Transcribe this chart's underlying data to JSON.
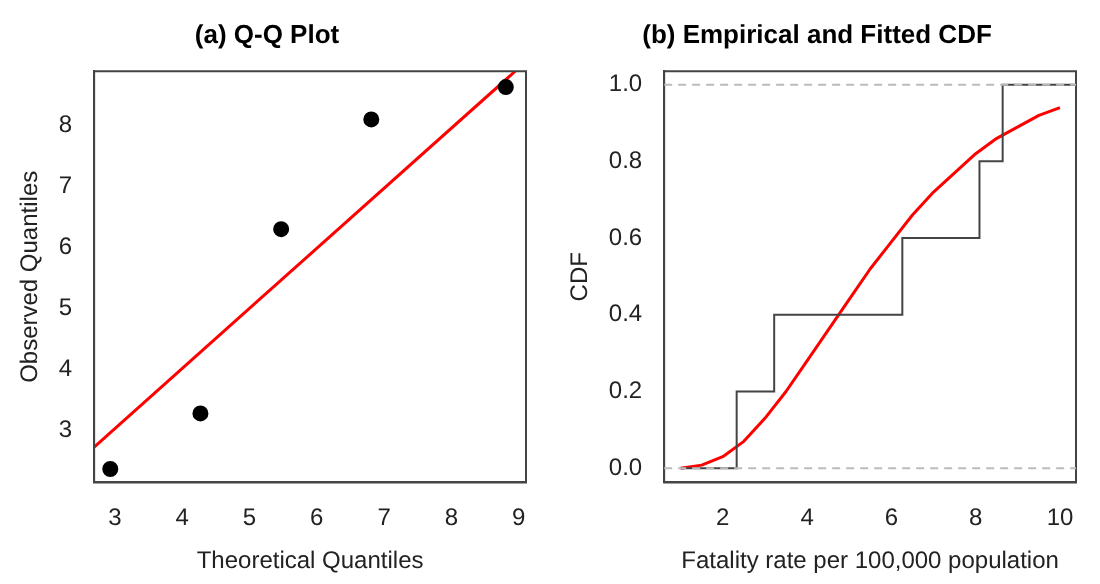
{
  "chart_data": [
    {
      "type": "scatter",
      "title": "(a) Q-Q Plot",
      "xlabel": "Theoretical Quantiles",
      "ylabel": "Observed Quantiles",
      "xlim": [
        2.69,
        9.11
      ],
      "ylim": [
        2.14,
        8.88
      ],
      "xticks": [
        3,
        4,
        5,
        6,
        7,
        8,
        9
      ],
      "yticks": [
        3,
        4,
        5,
        6,
        7,
        8
      ],
      "grid": false,
      "legend": false,
      "series": [
        {
          "marker": "circle",
          "color": "#000000",
          "x": [
            2.93,
            4.27,
            5.47,
            6.81,
            8.81
          ],
          "values": [
            2.36,
            3.27,
            6.29,
            8.09,
            8.62
          ]
        },
        {
          "type": "line",
          "color": "#ff0000",
          "x": [
            2.69,
            8.95
          ],
          "values": [
            2.72,
            8.88
          ]
        }
      ]
    },
    {
      "type": "line",
      "title": "(b) Empirical and Fitted CDF",
      "xlabel": "Fatality rate per 100,000 population",
      "ylabel": "CDF",
      "xlim": [
        0.61,
        10.38
      ],
      "ylim": [
        -0.037,
        1.035
      ],
      "xticks": [
        2,
        4,
        6,
        8,
        10
      ],
      "yticks": [
        {
          "value": 0,
          "label": "0.0"
        },
        {
          "value": 0.2,
          "label": "0.2"
        },
        {
          "value": 0.4,
          "label": "0.4"
        },
        {
          "value": 0.6,
          "label": "0.6"
        },
        {
          "value": 0.8,
          "label": "0.8"
        },
        {
          "value": 1,
          "label": "1.0"
        }
      ],
      "grid": false,
      "legend": false,
      "ref_lines": [
        {
          "axis": "y",
          "value": 0,
          "color": "#bbbbbb",
          "line_style": "dashed"
        },
        {
          "axis": "y",
          "value": 1,
          "color": "#bbbbbb",
          "line_style": "dashed"
        }
      ],
      "series": [
        {
          "type": "step",
          "color": "#444444",
          "x": [
            1.0,
            2.33,
            3.22,
            6.26,
            8.09,
            8.64,
            10.38
          ],
          "values": [
            0,
            0.2,
            0.4,
            0.6,
            0.8,
            1,
            1
          ]
        },
        {
          "color": "#ff0000",
          "x": [
            1,
            1.5,
            2,
            2.5,
            3,
            3.5,
            4,
            4.5,
            5,
            5.5,
            6,
            6.5,
            7,
            7.5,
            8,
            8.5,
            9,
            9.5,
            10
          ],
          "values": [
            0,
            0.008,
            0.03,
            0.07,
            0.13,
            0.2,
            0.28,
            0.36,
            0.44,
            0.52,
            0.59,
            0.66,
            0.72,
            0.77,
            0.82,
            0.86,
            0.89,
            0.92,
            0.94
          ]
        }
      ]
    }
  ]
}
